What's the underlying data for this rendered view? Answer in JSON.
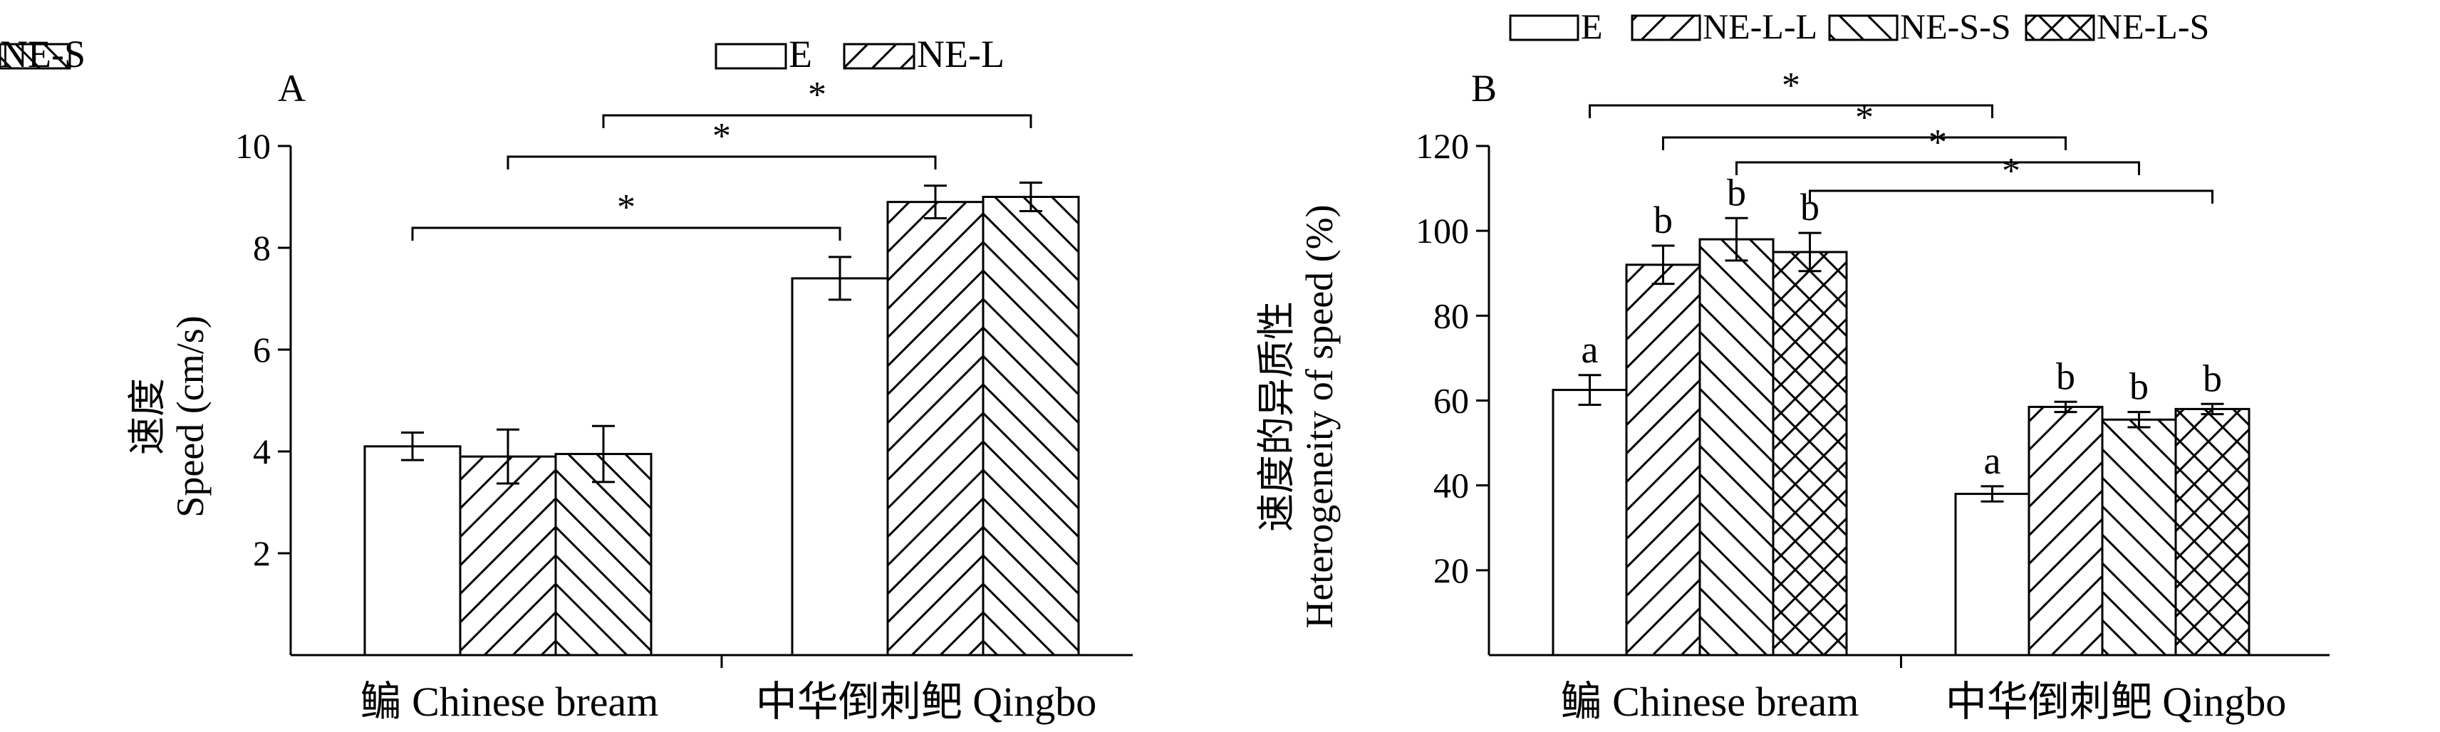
{
  "chart_data": [
    {
      "panel_label": "A",
      "type": "bar",
      "categories": [
        "鳊 Chinese bream",
        "中华倒刺鲃 Qingbo"
      ],
      "series": [
        {
          "name": "E",
          "pattern": "none",
          "values": [
            4.1,
            7.4
          ],
          "errors": [
            0.27,
            0.42
          ]
        },
        {
          "name": "NE-L",
          "pattern": "diag-up",
          "values": [
            3.9,
            8.9
          ],
          "errors": [
            0.53,
            0.32
          ]
        },
        {
          "name": "NE-S",
          "pattern": "diag-down",
          "values": [
            3.95,
            9.0
          ],
          "errors": [
            0.55,
            0.28
          ]
        }
      ],
      "ylabel_cn": "速度",
      "ylabel_en": "Speed (cm/s)",
      "ylim": [
        0,
        10
      ],
      "yticks": [
        2,
        4,
        6,
        8,
        10
      ],
      "letters": [],
      "significance": [
        {
          "label": "*",
          "from": [
            0,
            0
          ],
          "to": [
            1,
            0
          ]
        },
        {
          "label": "*",
          "from": [
            0,
            1
          ],
          "to": [
            1,
            1
          ]
        },
        {
          "label": "*",
          "from": [
            0,
            2
          ],
          "to": [
            1,
            2
          ]
        }
      ],
      "legend": "top"
    },
    {
      "panel_label": "B",
      "type": "bar",
      "categories": [
        "鳊 Chinese bream",
        "中华倒刺鲃 Qingbo"
      ],
      "series": [
        {
          "name": "E",
          "pattern": "none",
          "values": [
            62.5,
            38.0
          ],
          "errors": [
            3.5,
            1.8
          ]
        },
        {
          "name": "NE-L-L",
          "pattern": "diag-up",
          "values": [
            92.0,
            58.5
          ],
          "errors": [
            4.5,
            1.2
          ]
        },
        {
          "name": "NE-S-S",
          "pattern": "diag-down",
          "values": [
            98.0,
            55.5
          ],
          "errors": [
            5.0,
            1.8
          ]
        },
        {
          "name": "NE-L-S",
          "pattern": "cross",
          "values": [
            95.0,
            58.0
          ],
          "errors": [
            4.5,
            1.2
          ]
        }
      ],
      "ylabel_cn": "速度的异质性",
      "ylabel_en": "Heterogeneity of speed (%)",
      "ylim": [
        0,
        120
      ],
      "yticks": [
        20,
        40,
        60,
        80,
        100,
        120
      ],
      "letters": [
        [
          "a",
          "b",
          "b",
          "b"
        ],
        [
          "a",
          "b",
          "b",
          "b"
        ]
      ],
      "significance": [
        {
          "label": "*",
          "from": [
            0,
            0
          ],
          "to": [
            1,
            0
          ]
        },
        {
          "label": "*",
          "from": [
            0,
            1
          ],
          "to": [
            1,
            1
          ]
        },
        {
          "label": "*",
          "from": [
            0,
            2
          ],
          "to": [
            1,
            2
          ]
        },
        {
          "label": "*",
          "from": [
            0,
            3
          ],
          "to": [
            1,
            3
          ]
        }
      ],
      "legend": "top"
    }
  ]
}
